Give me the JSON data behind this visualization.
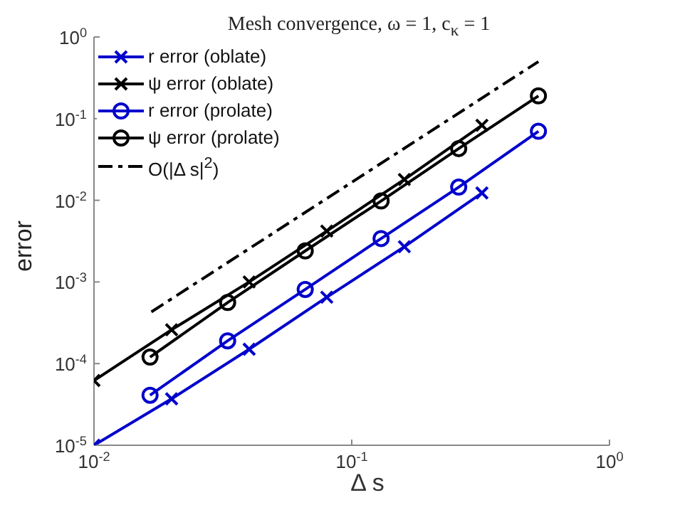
{
  "chart_data": {
    "type": "line",
    "title": "Mesh convergence, ω = 1, c$_{κ}$ = 1",
    "xlabel": "Δ s",
    "ylabel": "error",
    "log": "xy",
    "grid": false,
    "legend": "top left",
    "xlim": [
      0.01,
      1
    ],
    "xticks": [
      {
        "value": 0.01,
        "label": "10$^{-2}$"
      },
      {
        "value": 0.1,
        "label": "10$^{-1}$"
      },
      {
        "value": 1,
        "label": "10$^{0}$"
      }
    ],
    "ylim": [
      1e-05,
      1
    ],
    "yticks": [
      {
        "value": 1e-05,
        "label": "10$^{-5}$"
      },
      {
        "value": 0.0001,
        "label": "10$^{-4}$"
      },
      {
        "value": 0.001,
        "label": "10$^{-3}$"
      },
      {
        "value": 0.01,
        "label": "10$^{-2}$"
      },
      {
        "value": 0.1,
        "label": "10$^{-1}$"
      },
      {
        "value": 1,
        "label": "10$^{0}$"
      }
    ],
    "series": [
      {
        "name": "r error (oblate)",
        "color": "#0000cc",
        "marker": "cross",
        "line_style": "solid",
        "x": [
          0.01,
          0.02,
          0.04,
          0.08,
          0.16,
          0.32
        ],
        "values": [
          1e-05,
          3.7e-05,
          0.00015,
          0.00065,
          0.0027,
          0.0123
        ]
      },
      {
        "name": "ψ error (oblate)",
        "color": "#000000",
        "marker": "cross",
        "line_style": "solid",
        "x": [
          0.01,
          0.02,
          0.04,
          0.08,
          0.16,
          0.32
        ],
        "values": [
          6.2e-05,
          0.00026,
          0.001,
          0.0042,
          0.018,
          0.083
        ]
      },
      {
        "name": "r error (prolate)",
        "color": "#0000cc",
        "marker": "circle",
        "line_style": "solid",
        "x": [
          0.0165,
          0.033,
          0.066,
          0.13,
          0.26,
          0.53
        ],
        "values": [
          4.1e-05,
          0.00019,
          0.00081,
          0.0034,
          0.0145,
          0.07
        ]
      },
      {
        "name": "ψ error (prolate)",
        "color": "#000000",
        "marker": "circle",
        "line_style": "solid",
        "x": [
          0.0165,
          0.033,
          0.066,
          0.13,
          0.26,
          0.53
        ],
        "values": [
          0.00012,
          0.00056,
          0.0024,
          0.0098,
          0.043,
          0.19
        ]
      },
      {
        "name": "O(|Δ s|$^{2}$)",
        "color": "#000000",
        "marker": "none",
        "line_style": "dashed",
        "x": [
          0.0167,
          0.53
        ],
        "values": [
          0.00043,
          0.5
        ]
      }
    ]
  }
}
